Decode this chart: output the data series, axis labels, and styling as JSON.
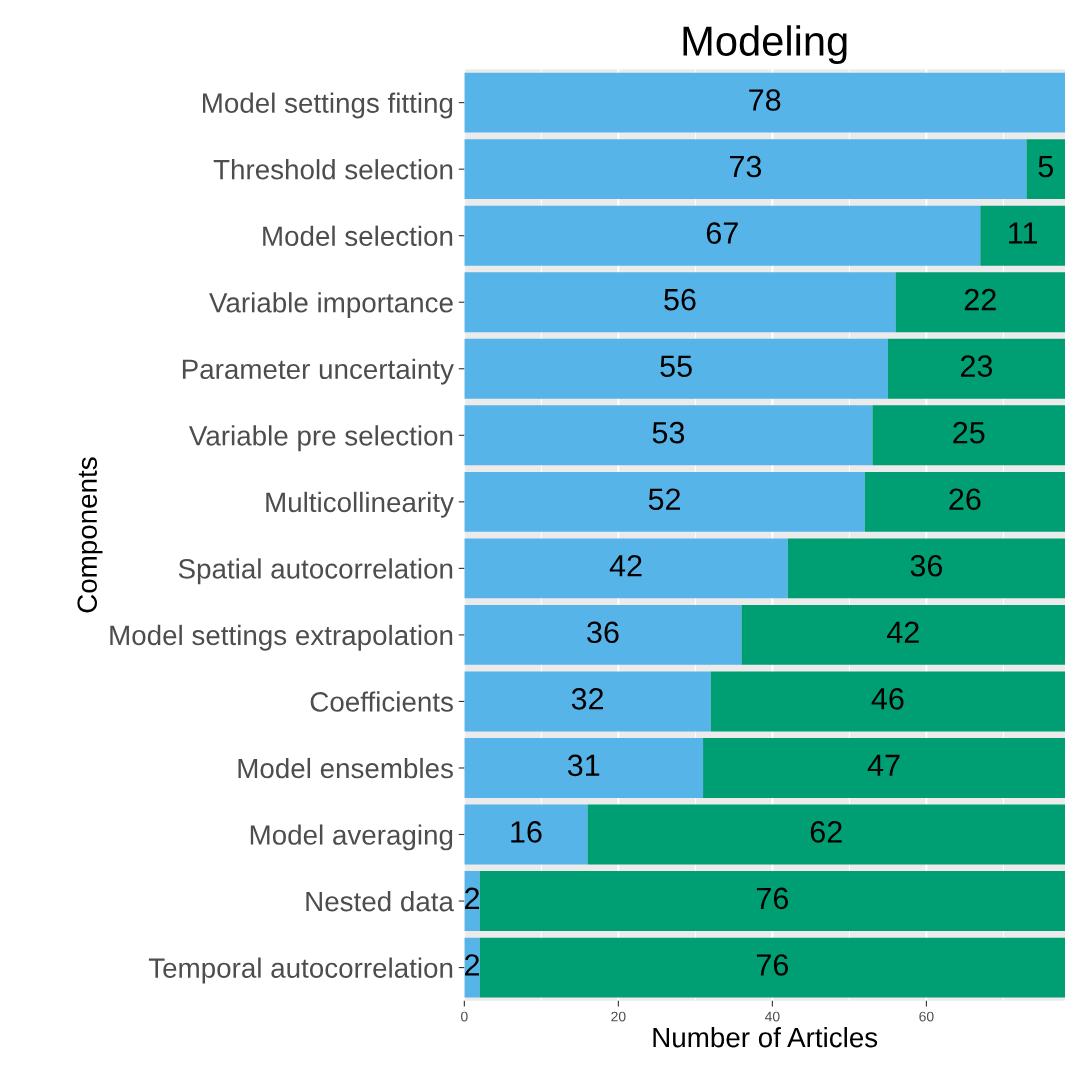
{
  "chart_data": {
    "type": "bar",
    "orientation": "horizontal",
    "stacked": true,
    "title": "Modeling",
    "xlabel": "Number of Articles",
    "ylabel": "Components",
    "categories": [
      "Model settings fitting",
      "Threshold selection",
      "Model selection",
      "Variable importance",
      "Parameter uncertainty",
      "Variable pre selection",
      "Multicollinearity",
      "Spatial autocorrelation",
      "Model settings extrapolation",
      "Coefficients",
      "Model ensembles",
      "Model averaging",
      "Nested data",
      "Temporal autocorrelation"
    ],
    "series": [
      {
        "color": "#56b4e9",
        "values": [
          78,
          73,
          67,
          56,
          55,
          53,
          52,
          42,
          36,
          32,
          31,
          16,
          2,
          2
        ]
      },
      {
        "color": "#009e73",
        "values": [
          null,
          5,
          11,
          22,
          23,
          25,
          26,
          36,
          42,
          46,
          47,
          62,
          76,
          76
        ]
      }
    ],
    "xlim": [
      0,
      78
    ],
    "xticks": [
      0,
      20,
      40,
      60
    ],
    "grid": "x",
    "data_labels": true,
    "legend": false
  }
}
